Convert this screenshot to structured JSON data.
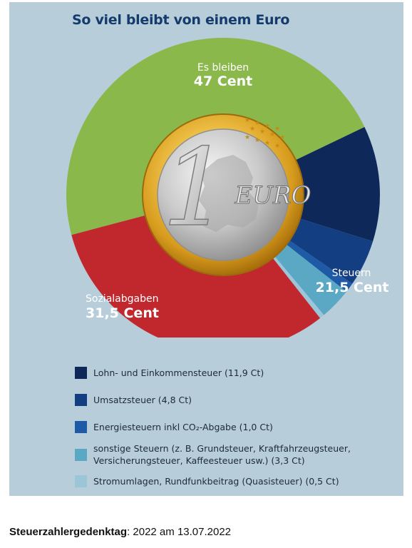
{
  "title": "So viel bleibt von einem Euro",
  "colors": {
    "panel": "#b7cdd9",
    "green": "#8ab84b",
    "red": "#c0282e",
    "navy1": "#0d2859",
    "navy2": "#143e82",
    "blue3": "#1f5aa6",
    "teal4": "#5aa8c4",
    "lightblue5": "#9cc6d8"
  },
  "coin": {
    "numeral": "1",
    "text": "EURO",
    "icon": "euro-coin-icon"
  },
  "chart_data": {
    "type": "pie",
    "title": "So viel bleibt von einem Euro",
    "unit": "Cent",
    "slices": [
      {
        "label": "Es bleiben",
        "value": 47,
        "color": "#8ab84b"
      },
      {
        "label": "Lohn- und Einkommensteuer",
        "value": 11.9,
        "color": "#0d2859"
      },
      {
        "label": "Umsatzsteuer",
        "value": 4.8,
        "color": "#143e82"
      },
      {
        "label": "Energiesteuern inkl CO₂-Abgabe",
        "value": 1.0,
        "color": "#1f5aa6"
      },
      {
        "label": "sonstige Steuern",
        "value": 3.3,
        "color": "#5aa8c4"
      },
      {
        "label": "Stromumlagen, Rundfunkbeitrag (Quasisteuer)",
        "value": 0.5,
        "color": "#9cc6d8"
      },
      {
        "label": "Sozialabgaben",
        "value": 31.5,
        "color": "#c0282e"
      }
    ],
    "group_labels": [
      {
        "name": "Es bleiben",
        "value": "47 Cent"
      },
      {
        "name": "Steuern",
        "value": "21,5 Cent"
      },
      {
        "name": "Sozialabgaben",
        "value": "31,5 Cent"
      }
    ]
  },
  "legend": [
    {
      "text": "Lohn- und Einkommensteuer (11,9 Ct)",
      "color": "#0d2859"
    },
    {
      "text": "Umsatzsteuer (4,8 Ct)",
      "color": "#143e82"
    },
    {
      "text": "Energiesteuern inkl CO₂-Abgabe (1,0 Ct)",
      "color": "#1f5aa6"
    },
    {
      "text": "sonstige Steuern (z. B. Grundsteuer, Kraftfahrzeugsteuer,\nVersicherungsteuer, Kaffeesteuer usw.) (3,3 Ct)",
      "color": "#5aa8c4"
    },
    {
      "text": "Stromumlagen, Rundfunkbeitrag (Quasisteuer) (0,5 Ct)",
      "color": "#9cc6d8"
    }
  ],
  "footer": {
    "label": "Steuerzahlergedenktag",
    "text": ": 2022 am 13.07.2022"
  }
}
